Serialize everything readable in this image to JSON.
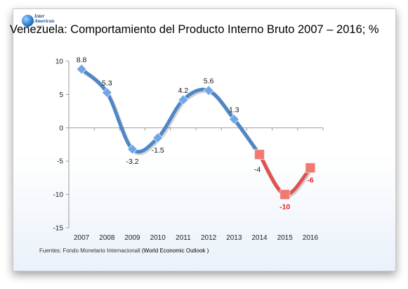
{
  "logo": {
    "line1": "Inter",
    "line2": "American",
    "line3": "Trends"
  },
  "title": "Venezuela: Comportamiento del Producto Interno Bruto 2007 – 2016; %",
  "source": {
    "prefix": "Fuentes: Fondo Monetario Internacionall",
    "publication": "(World Economic Outlook )"
  },
  "colors": {
    "historical": "#4f86c6",
    "historical_marker": "#6fa6e6",
    "forecast": "#e0524c",
    "forecast_marker": "#f07a72",
    "forecast_label": "#e02020",
    "axis": "#9a9a9a"
  },
  "chart_data": {
    "type": "line",
    "title": "Venezuela: Comportamiento del Producto Interno Bruto 2007 – 2016; %",
    "xlabel": "",
    "ylabel": "",
    "ylim": [
      -15,
      10
    ],
    "yticks": [
      10,
      5,
      0,
      -5,
      -10,
      -15
    ],
    "categories": [
      "2007",
      "2008",
      "2009",
      "2010",
      "2011",
      "2012",
      "2013",
      "2014",
      "2015",
      "2016"
    ],
    "series": [
      {
        "values": [
          8.8,
          5.3,
          -3.2,
          -1.5,
          4.2,
          5.6,
          1.3,
          -4,
          null,
          null
        ],
        "labels": [
          "8.8",
          "5.3",
          "-3.2",
          "-1.5",
          "4.2",
          "5.6",
          "1.3",
          "-4",
          "",
          ""
        ]
      },
      {
        "values": [
          null,
          null,
          null,
          null,
          null,
          null,
          null,
          -4,
          -10,
          -6
        ],
        "labels": [
          "",
          "",
          "",
          "",
          "",
          "",
          "",
          "",
          "-10",
          "-6"
        ]
      }
    ],
    "grid": false,
    "legend": "none"
  }
}
